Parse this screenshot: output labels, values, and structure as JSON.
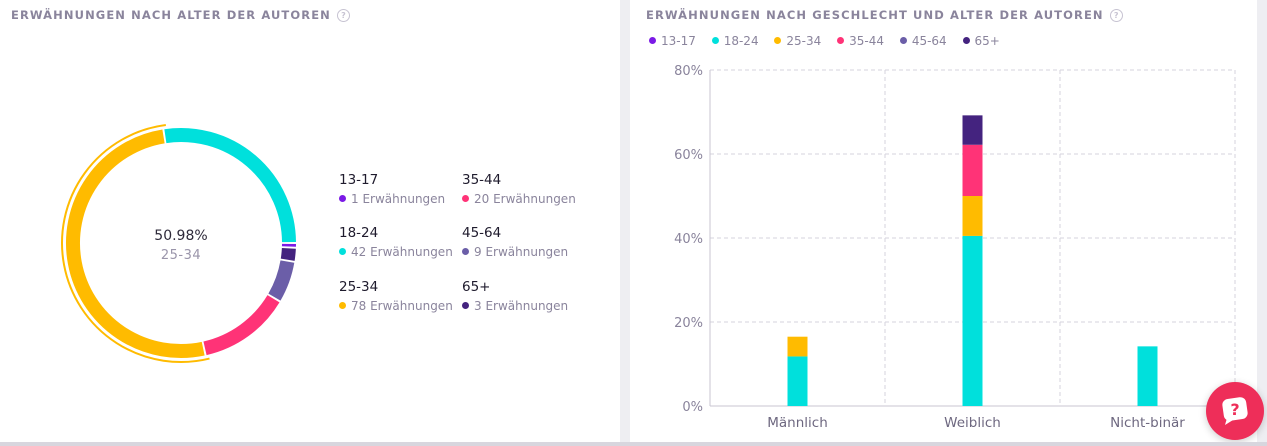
{
  "left_panel": {
    "title": "ERWÄHNUNGEN NACH ALTER DER AUTOREN",
    "help": "?",
    "center": {
      "percent": "50.98%",
      "label": "25-34"
    }
  },
  "right_panel": {
    "title": "ERWÄHNUNGEN NACH GESCHLECHT UND ALTER DER AUTOREN",
    "help": "?"
  },
  "legend": [
    {
      "age": "13-17",
      "count": "1 Erwähnungen",
      "color": "#7b1ae6"
    },
    {
      "age": "18-24",
      "count": "42 Erwähnungen",
      "color": "#00e0dc"
    },
    {
      "age": "25-34",
      "count": "78 Erwähnungen",
      "color": "#ffbb00"
    },
    {
      "age": "35-44",
      "count": "20 Erwähnungen",
      "color": "#ff3377"
    },
    {
      "age": "45-64",
      "count": "9 Erwähnungen",
      "color": "#6b5ea8"
    },
    {
      "age": "65+",
      "count": "3 Erwähnungen",
      "color": "#44237f"
    }
  ],
  "chart_data": [
    {
      "type": "pie",
      "categories": [
        "13-17",
        "18-24",
        "25-34",
        "35-44",
        "45-64",
        "65+"
      ],
      "values": [
        1,
        42,
        78,
        20,
        9,
        3
      ],
      "highlighted": "25-34",
      "colors": [
        "#7b1ae6",
        "#00e0dc",
        "#ffbb00",
        "#ff3377",
        "#6b5ea8",
        "#44237f"
      ]
    },
    {
      "type": "bar",
      "stacked": true,
      "categories": [
        "Männlich",
        "Weiblich",
        "Nicht-binär"
      ],
      "series": [
        {
          "name": "13-17",
          "color": "#7b1ae6",
          "values": [
            0,
            0,
            0
          ]
        },
        {
          "name": "18-24",
          "color": "#00e0dc",
          "values": [
            11.8,
            40.5,
            14.2
          ]
        },
        {
          "name": "25-34",
          "color": "#ffbb00",
          "values": [
            4.7,
            9.5,
            0
          ]
        },
        {
          "name": "35-44",
          "color": "#ff3377",
          "values": [
            0,
            12.2,
            0
          ]
        },
        {
          "name": "45-64",
          "color": "#6b5ea8",
          "values": [
            0,
            0,
            0
          ]
        },
        {
          "name": "65+",
          "color": "#44237f",
          "values": [
            0,
            7.0,
            0
          ]
        }
      ],
      "ylim": [
        0,
        80
      ],
      "yticks": [
        "0%",
        "20%",
        "40%",
        "60%",
        "80%"
      ],
      "grid": true,
      "legend_position": "top-left"
    }
  ]
}
